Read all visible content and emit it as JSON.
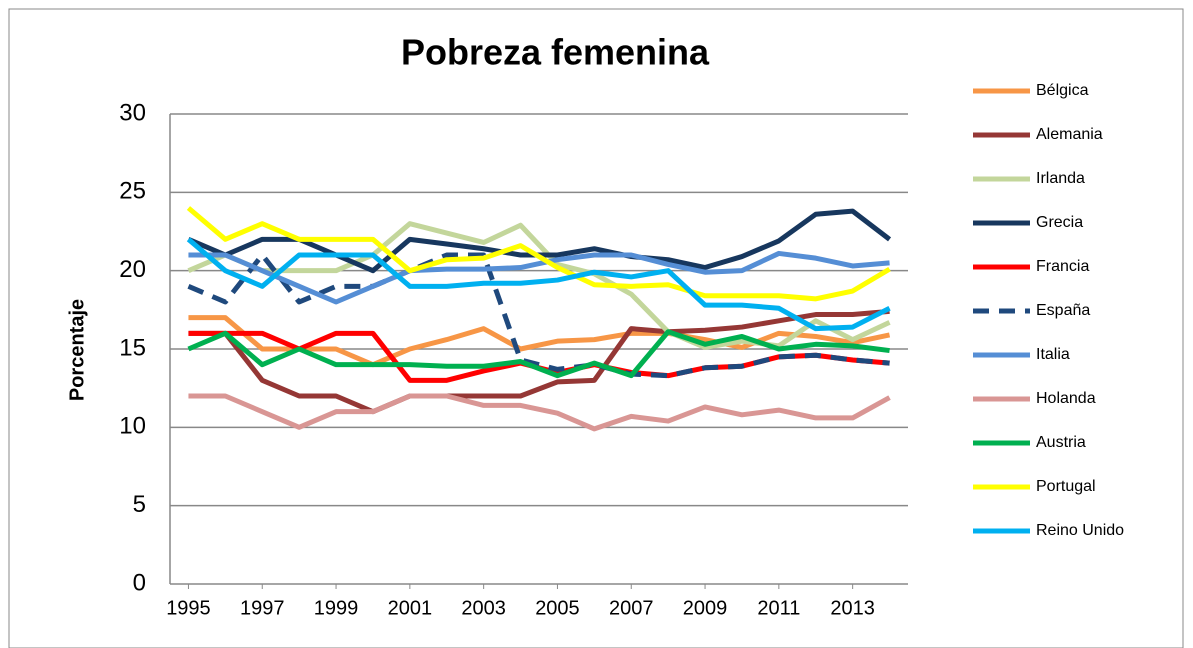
{
  "chart_data": {
    "type": "line",
    "title": "Pobreza femenina",
    "y_label": "Porcentaje",
    "x": [
      1995,
      1996,
      1997,
      1998,
      1999,
      2000,
      2001,
      2002,
      2003,
      2004,
      2005,
      2006,
      2007,
      2008,
      2009,
      2010,
      2011,
      2012,
      2013,
      2014
    ],
    "xlim": [
      1994.5,
      2014.5
    ],
    "xticks": [
      1995,
      1997,
      1999,
      2001,
      2003,
      2005,
      2007,
      2009,
      2011,
      2013
    ],
    "ylim": [
      0,
      30
    ],
    "yticks": [
      0,
      5,
      10,
      15,
      20,
      25,
      30
    ],
    "grid": true,
    "legend": "right",
    "series": [
      {
        "name": "Bélgica",
        "color": "#f79646",
        "values": [
          17,
          17,
          15,
          15,
          15,
          14,
          15,
          15.6,
          16.3,
          15,
          15.5,
          15.6,
          16,
          16,
          15.6,
          15.1,
          16,
          15.8,
          15.4,
          15.9
        ]
      },
      {
        "name": "Alemania",
        "color": "#953735",
        "values": [
          16,
          16,
          13,
          12,
          12,
          11,
          12,
          12,
          12,
          12,
          12.9,
          13,
          16.3,
          16.1,
          16.2,
          16.4,
          16.8,
          17.2,
          17.2,
          17.4
        ]
      },
      {
        "name": "Irlanda",
        "color": "#c3d69b",
        "values": [
          20,
          21,
          20,
          20,
          20,
          21,
          23,
          22.4,
          21.8,
          22.9,
          20.4,
          19.8,
          18.5,
          16.1,
          15.1,
          15.5,
          15.2,
          16.8,
          15.6,
          16.7
        ]
      },
      {
        "name": "Grecia",
        "color": "#17375e",
        "values": [
          22,
          21,
          22,
          22,
          21,
          20,
          22,
          21.7,
          21.4,
          21,
          21,
          21.4,
          20.9,
          20.7,
          20.2,
          20.9,
          21.9,
          23.6,
          23.8,
          22
        ]
      },
      {
        "name": "Francia",
        "color": "#ff0000",
        "values": [
          16,
          16,
          16,
          15,
          16,
          16,
          13,
          13,
          13.6,
          14.1,
          13.5,
          14,
          13.5,
          13.3,
          13.8,
          13.9,
          14.5,
          14.6,
          14.3,
          14.1
        ]
      },
      {
        "name": "España",
        "color": "#1f497d",
        "dashed": true,
        "values": [
          19,
          18,
          21,
          18,
          19,
          19,
          20,
          21,
          21,
          14.3,
          13.7,
          14,
          13.4,
          13.3,
          13.8,
          13.9,
          14.5,
          14.6,
          14.3,
          14.1
        ]
      },
      {
        "name": "Italia",
        "color": "#558ed5",
        "values": [
          21,
          21,
          20,
          19,
          18,
          19,
          20,
          20.1,
          20.1,
          20.2,
          20.7,
          21,
          21,
          20.4,
          19.9,
          20,
          21.1,
          20.8,
          20.3,
          20.5
        ]
      },
      {
        "name": "Holanda",
        "color": "#d99694",
        "values": [
          12,
          12,
          11,
          10,
          11,
          11,
          12,
          12,
          11.4,
          11.4,
          10.9,
          9.9,
          10.7,
          10.4,
          11.3,
          10.8,
          11.1,
          10.6,
          10.6,
          11.9
        ]
      },
      {
        "name": "Austria",
        "color": "#00b050",
        "values": [
          15,
          16,
          14,
          15,
          14,
          14,
          14,
          13.9,
          13.9,
          14.2,
          13.3,
          14.1,
          13.3,
          16.1,
          15.3,
          15.8,
          15,
          15.3,
          15.2,
          14.9
        ]
      },
      {
        "name": "Portugal",
        "color": "#ffff00",
        "values": [
          24,
          22,
          23,
          22,
          22,
          22,
          20,
          20.7,
          20.8,
          21.6,
          20.2,
          19.1,
          19,
          19.1,
          18.4,
          18.4,
          18.4,
          18.2,
          18.7,
          20.1
        ]
      },
      {
        "name": "Reino Unido",
        "color": "#00b0f0",
        "values": [
          22,
          20,
          19,
          21,
          21,
          21,
          19,
          19,
          19.2,
          19.2,
          19.4,
          19.9,
          19.6,
          20,
          17.8,
          17.8,
          17.6,
          16.3,
          16.4,
          17.6
        ]
      }
    ]
  }
}
